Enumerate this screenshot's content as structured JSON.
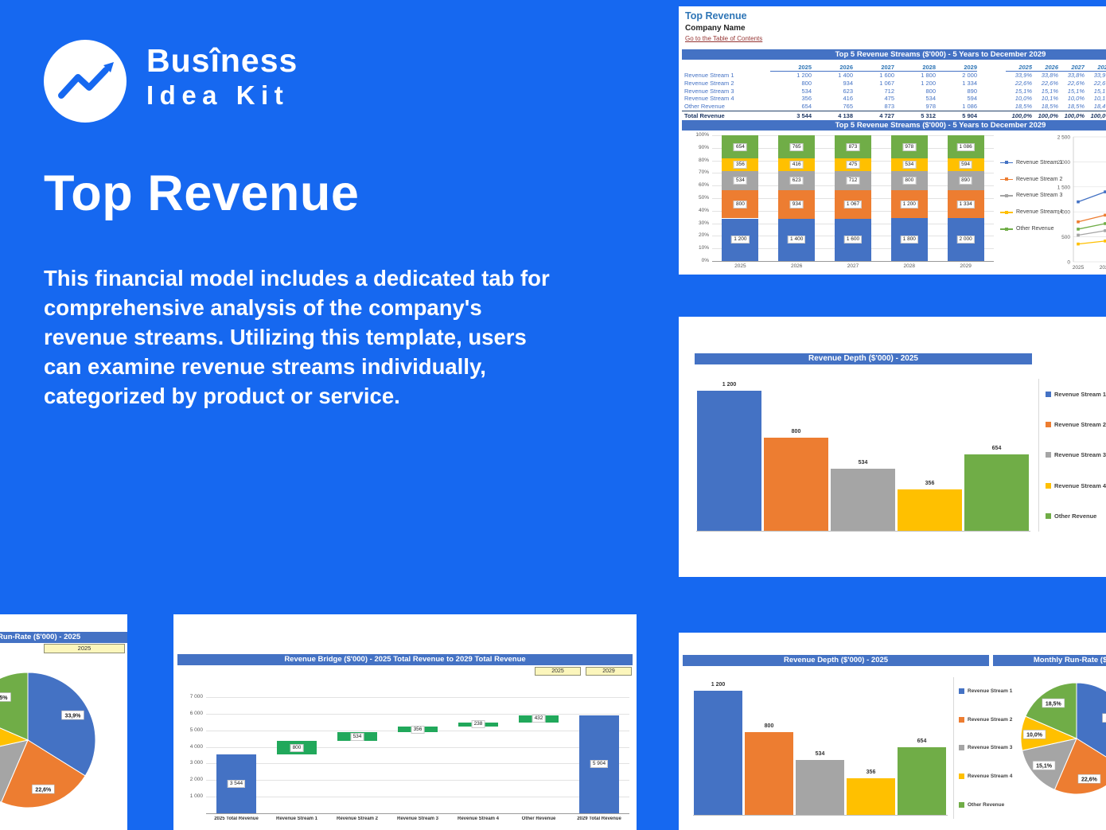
{
  "brand": {
    "line1": "Busîness",
    "line2": "Idea Kit"
  },
  "hero": {
    "title": "Top Revenue",
    "description_lines": [
      "This financial model includes a dedicated tab for",
      "comprehensive analysis of the company's",
      "revenue streams. Utilizing this template, users",
      "can examine revenue streams individually,",
      "categorized by product or service."
    ]
  },
  "colors": {
    "background": "#1668F0",
    "band_blue": "#4472C4",
    "link_maroon": "#963634",
    "series": [
      "#4472C4",
      "#ED7D31",
      "#A5A5A5",
      "#FFC000",
      "#70AD47"
    ],
    "bridge_delta_green": "#21A85B",
    "slicer_yellow": "#FCF6BC"
  },
  "excel": {
    "sheet_title": "Top Revenue",
    "company": "Company Name",
    "toc_link": "Go to the Table of Contents",
    "table_title": "Top 5 Revenue Streams ($'000) - 5 Years to December 2029",
    "years": [
      "2025",
      "2026",
      "2027",
      "2028",
      "2029"
    ],
    "pct_years": [
      "2025",
      "2026",
      "2027",
      "2028"
    ],
    "rows": [
      {
        "label": "Revenue Stream 1",
        "values": [
          "1 200",
          "1 400",
          "1 600",
          "1 800",
          "2 000"
        ],
        "pcts": [
          "33,9%",
          "33,8%",
          "33,8%",
          "33,9%"
        ]
      },
      {
        "label": "Revenue Stream 2",
        "values": [
          "800",
          "934",
          "1 067",
          "1 200",
          "1 334"
        ],
        "pcts": [
          "22,6%",
          "22,6%",
          "22,6%",
          "22,6%"
        ]
      },
      {
        "label": "Revenue Stream 3",
        "values": [
          "534",
          "623",
          "712",
          "800",
          "890"
        ],
        "pcts": [
          "15,1%",
          "15,1%",
          "15,1%",
          "15,1%"
        ]
      },
      {
        "label": "Revenue Stream 4",
        "values": [
          "356",
          "416",
          "475",
          "534",
          "594"
        ],
        "pcts": [
          "10,0%",
          "10,1%",
          "10,0%",
          "10,1%"
        ]
      },
      {
        "label": "Other Revenue",
        "values": [
          "654",
          "765",
          "873",
          "978",
          "1 086"
        ],
        "pcts": [
          "18,5%",
          "18,5%",
          "18,5%",
          "18,4%"
        ]
      }
    ],
    "total": {
      "label": "Total Revenue",
      "values": [
        "3 544",
        "4 138",
        "4 727",
        "5 312",
        "5 904"
      ],
      "pcts": [
        "100,0%",
        "100,0%",
        "100,0%",
        "100,0%"
      ]
    }
  },
  "panels": {
    "monthly_runrate_title": "Monthly Run-Rate ($'000) - 2025",
    "runrate_dropdown": "2025",
    "bridge_slicers": [
      "2025",
      "2029"
    ]
  },
  "chart_data": [
    {
      "id": "streams-stacked",
      "type": "stacked100",
      "title": "Top 5 Revenue Streams ($'000) - 5 Years to December 2029",
      "categories": [
        "2025",
        "2026",
        "2027",
        "2028",
        "2029"
      ],
      "series": [
        {
          "name": "Revenue Stream 1",
          "color": "#4472C4",
          "values": [
            1200,
            1400,
            1600,
            1800,
            2000
          ]
        },
        {
          "name": "Revenue Stream 2",
          "color": "#ED7D31",
          "values": [
            800,
            934,
            1067,
            1200,
            1334
          ]
        },
        {
          "name": "Revenue Stream 3",
          "color": "#A5A5A5",
          "values": [
            534,
            623,
            712,
            800,
            890
          ]
        },
        {
          "name": "Revenue Stream 4",
          "color": "#FFC000",
          "values": [
            356,
            416,
            475,
            534,
            594
          ]
        },
        {
          "name": "Other Revenue",
          "color": "#70AD47",
          "values": [
            654,
            765,
            873,
            978,
            1086
          ]
        }
      ],
      "y_ticks": [
        "100%",
        "90%",
        "80%",
        "70%",
        "60%",
        "50%",
        "40%",
        "30%",
        "20%",
        "10%",
        "0%"
      ],
      "ylim": [
        "0%",
        "100%"
      ],
      "grid": true,
      "legend_position": "right"
    },
    {
      "id": "streams-line",
      "type": "line",
      "categories": [
        "2025",
        "2026",
        "2027",
        "2028",
        "2029"
      ],
      "series": [
        {
          "name": "Revenue Stream 1",
          "color": "#4472C4",
          "values": [
            1200,
            1400,
            1600,
            1800,
            2000
          ]
        },
        {
          "name": "Revenue Stream 2",
          "color": "#ED7D31",
          "values": [
            800,
            934,
            1067,
            1200,
            1334
          ]
        },
        {
          "name": "Revenue Stream 3",
          "color": "#A5A5A5",
          "values": [
            534,
            623,
            712,
            800,
            890
          ]
        },
        {
          "name": "Revenue Stream 4",
          "color": "#FFC000",
          "values": [
            356,
            416,
            475,
            534,
            594
          ]
        },
        {
          "name": "Other Revenue",
          "color": "#70AD47",
          "values": [
            654,
            765,
            873,
            978,
            1086
          ]
        }
      ],
      "y_ticks": [
        "2 500",
        "2 000",
        "1 500",
        "1 000",
        "500",
        "0"
      ],
      "ymax": 2500,
      "ylim": [
        0,
        2500
      ],
      "grid": true
    },
    {
      "id": "depth",
      "type": "bar",
      "title": "Revenue Depth ($'000) - 2025",
      "categories": [
        "Revenue Stream 1",
        "Revenue Stream 2",
        "Revenue Stream 3",
        "Revenue Stream 4",
        "Other Revenue"
      ],
      "values": [
        1200,
        800,
        534,
        356,
        654
      ],
      "colors": [
        "#4472C4",
        "#ED7D31",
        "#A5A5A5",
        "#FFC000",
        "#70AD47"
      ],
      "ylim": [
        0,
        1200
      ],
      "grid": false,
      "legend_position": "right"
    },
    {
      "id": "runrate-pie",
      "type": "pie",
      "title": "Monthly Run-Rate ($'000) - 2025",
      "labels": [
        "Revenue Stream 1",
        "Revenue Stream 2",
        "Revenue Stream 3",
        "Revenue Stream 4",
        "Other Revenue"
      ],
      "values": [
        33.9,
        22.6,
        15.1,
        10.0,
        18.5
      ],
      "display": [
        "33,9%",
        "22,6%",
        "15,1%",
        "10,0%",
        "18,5%"
      ],
      "colors": [
        "#4472C4",
        "#ED7D31",
        "#A5A5A5",
        "#FFC000",
        "#70AD47"
      ]
    },
    {
      "id": "bridge",
      "type": "waterfall",
      "title": "Revenue Bridge ($'000) - 2025 Total Revenue to 2029 Total Revenue",
      "steps": [
        {
          "name": "2025 Total Revenue",
          "value": 3544,
          "kind": "total"
        },
        {
          "name": "Revenue Stream 1",
          "value": 800,
          "kind": "delta"
        },
        {
          "name": "Revenue Stream 2",
          "value": 534,
          "kind": "delta"
        },
        {
          "name": "Revenue Stream 3",
          "value": 356,
          "kind": "delta"
        },
        {
          "name": "Revenue Stream 4",
          "value": 238,
          "kind": "delta"
        },
        {
          "name": "Other Revenue",
          "value": 432,
          "kind": "delta"
        },
        {
          "name": "2029 Total Revenue",
          "value": 5904,
          "kind": "total"
        }
      ],
      "y_ticks": [
        7000,
        6000,
        5000,
        4000,
        3000,
        2000,
        1000
      ],
      "ylim": [
        0,
        7000
      ],
      "colors": {
        "total": "#4472C4",
        "delta": "#21A85B"
      },
      "grid": true
    }
  ]
}
